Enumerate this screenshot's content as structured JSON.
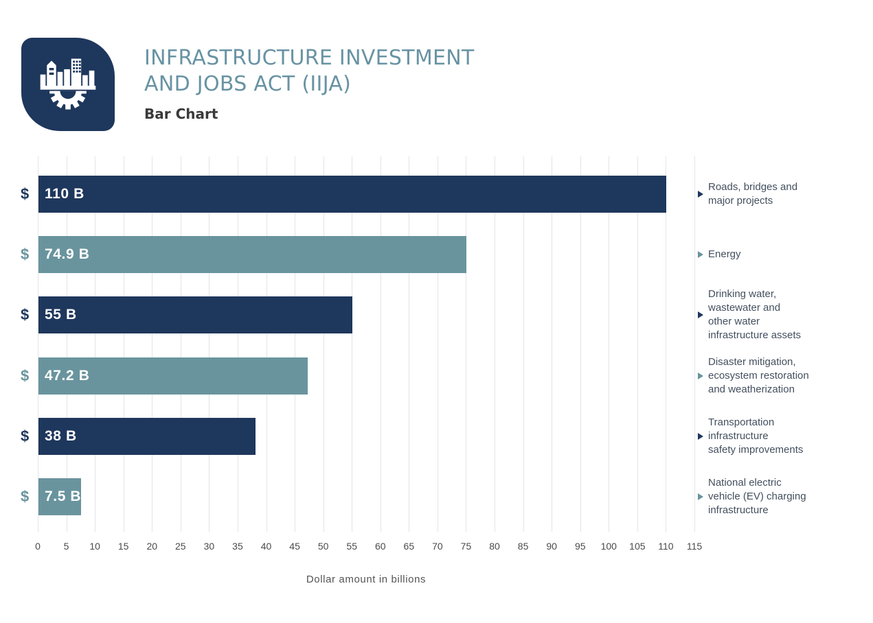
{
  "header": {
    "title_line1": "INFRASTRUCTURE INVESTMENT",
    "title_line2": "AND JOBS ACT (IIJA)",
    "subtitle": "Bar Chart"
  },
  "colors": {
    "navy": "#1E375C",
    "teal": "#69949E",
    "title_text": "#6893A3",
    "grid": "#E4E4E8",
    "value_text": "#FFFFFF",
    "tick_text": "#4A4A4A",
    "axis_label_text": "#545454",
    "category_text": "#434F5E",
    "background": "#FFFFFF"
  },
  "chart_data": {
    "type": "bar",
    "orientation": "horizontal",
    "title": "Infrastructure Investment and Jobs Act (IIJA)",
    "xlabel": "Dollar amount in billions",
    "ylabel": "",
    "xlim": [
      0,
      115
    ],
    "grid": true,
    "x_ticks": [
      0,
      5,
      10,
      15,
      20,
      25,
      30,
      35,
      40,
      45,
      50,
      55,
      60,
      65,
      70,
      75,
      80,
      85,
      90,
      95,
      100,
      105,
      110,
      115
    ],
    "value_prefix_symbol": "$",
    "categories": [
      "Roads, bridges and major projects",
      "Energy",
      "Drinking water, wastewater and other water infrastructure assets",
      "Disaster mitigation, ecosystem restoration and weatherization",
      "Transportation infrastructure safety improvements",
      "National electric vehicle (EV) charging infrastructure"
    ],
    "values": [
      110,
      74.9,
      55,
      47.2,
      38,
      7.5
    ],
    "bars": [
      {
        "category_lines": "Roads, bridges and\nmajor projects",
        "value": 110,
        "display_value": "110 B",
        "color": "#1E375C"
      },
      {
        "category_lines": "Energy",
        "value": 74.9,
        "display_value": "74.9 B",
        "color": "#69949E"
      },
      {
        "category_lines": "Drinking water,\nwastewater and\nother water\ninfrastructure assets",
        "value": 55,
        "display_value": "55 B",
        "color": "#1E375C"
      },
      {
        "category_lines": "Disaster mitigation,\necosystem restoration\nand weatherization",
        "value": 47.2,
        "display_value": "47.2 B",
        "color": "#69949E"
      },
      {
        "category_lines": "Transportation\ninfrastructure\nsafety improvements",
        "value": 38,
        "display_value": "38 B",
        "color": "#1E375C"
      },
      {
        "category_lines": "National electric\nvehicle (EV) charging\ninfrastructure",
        "value": 7.5,
        "display_value": "7.5 B",
        "color": "#69949E"
      }
    ]
  }
}
